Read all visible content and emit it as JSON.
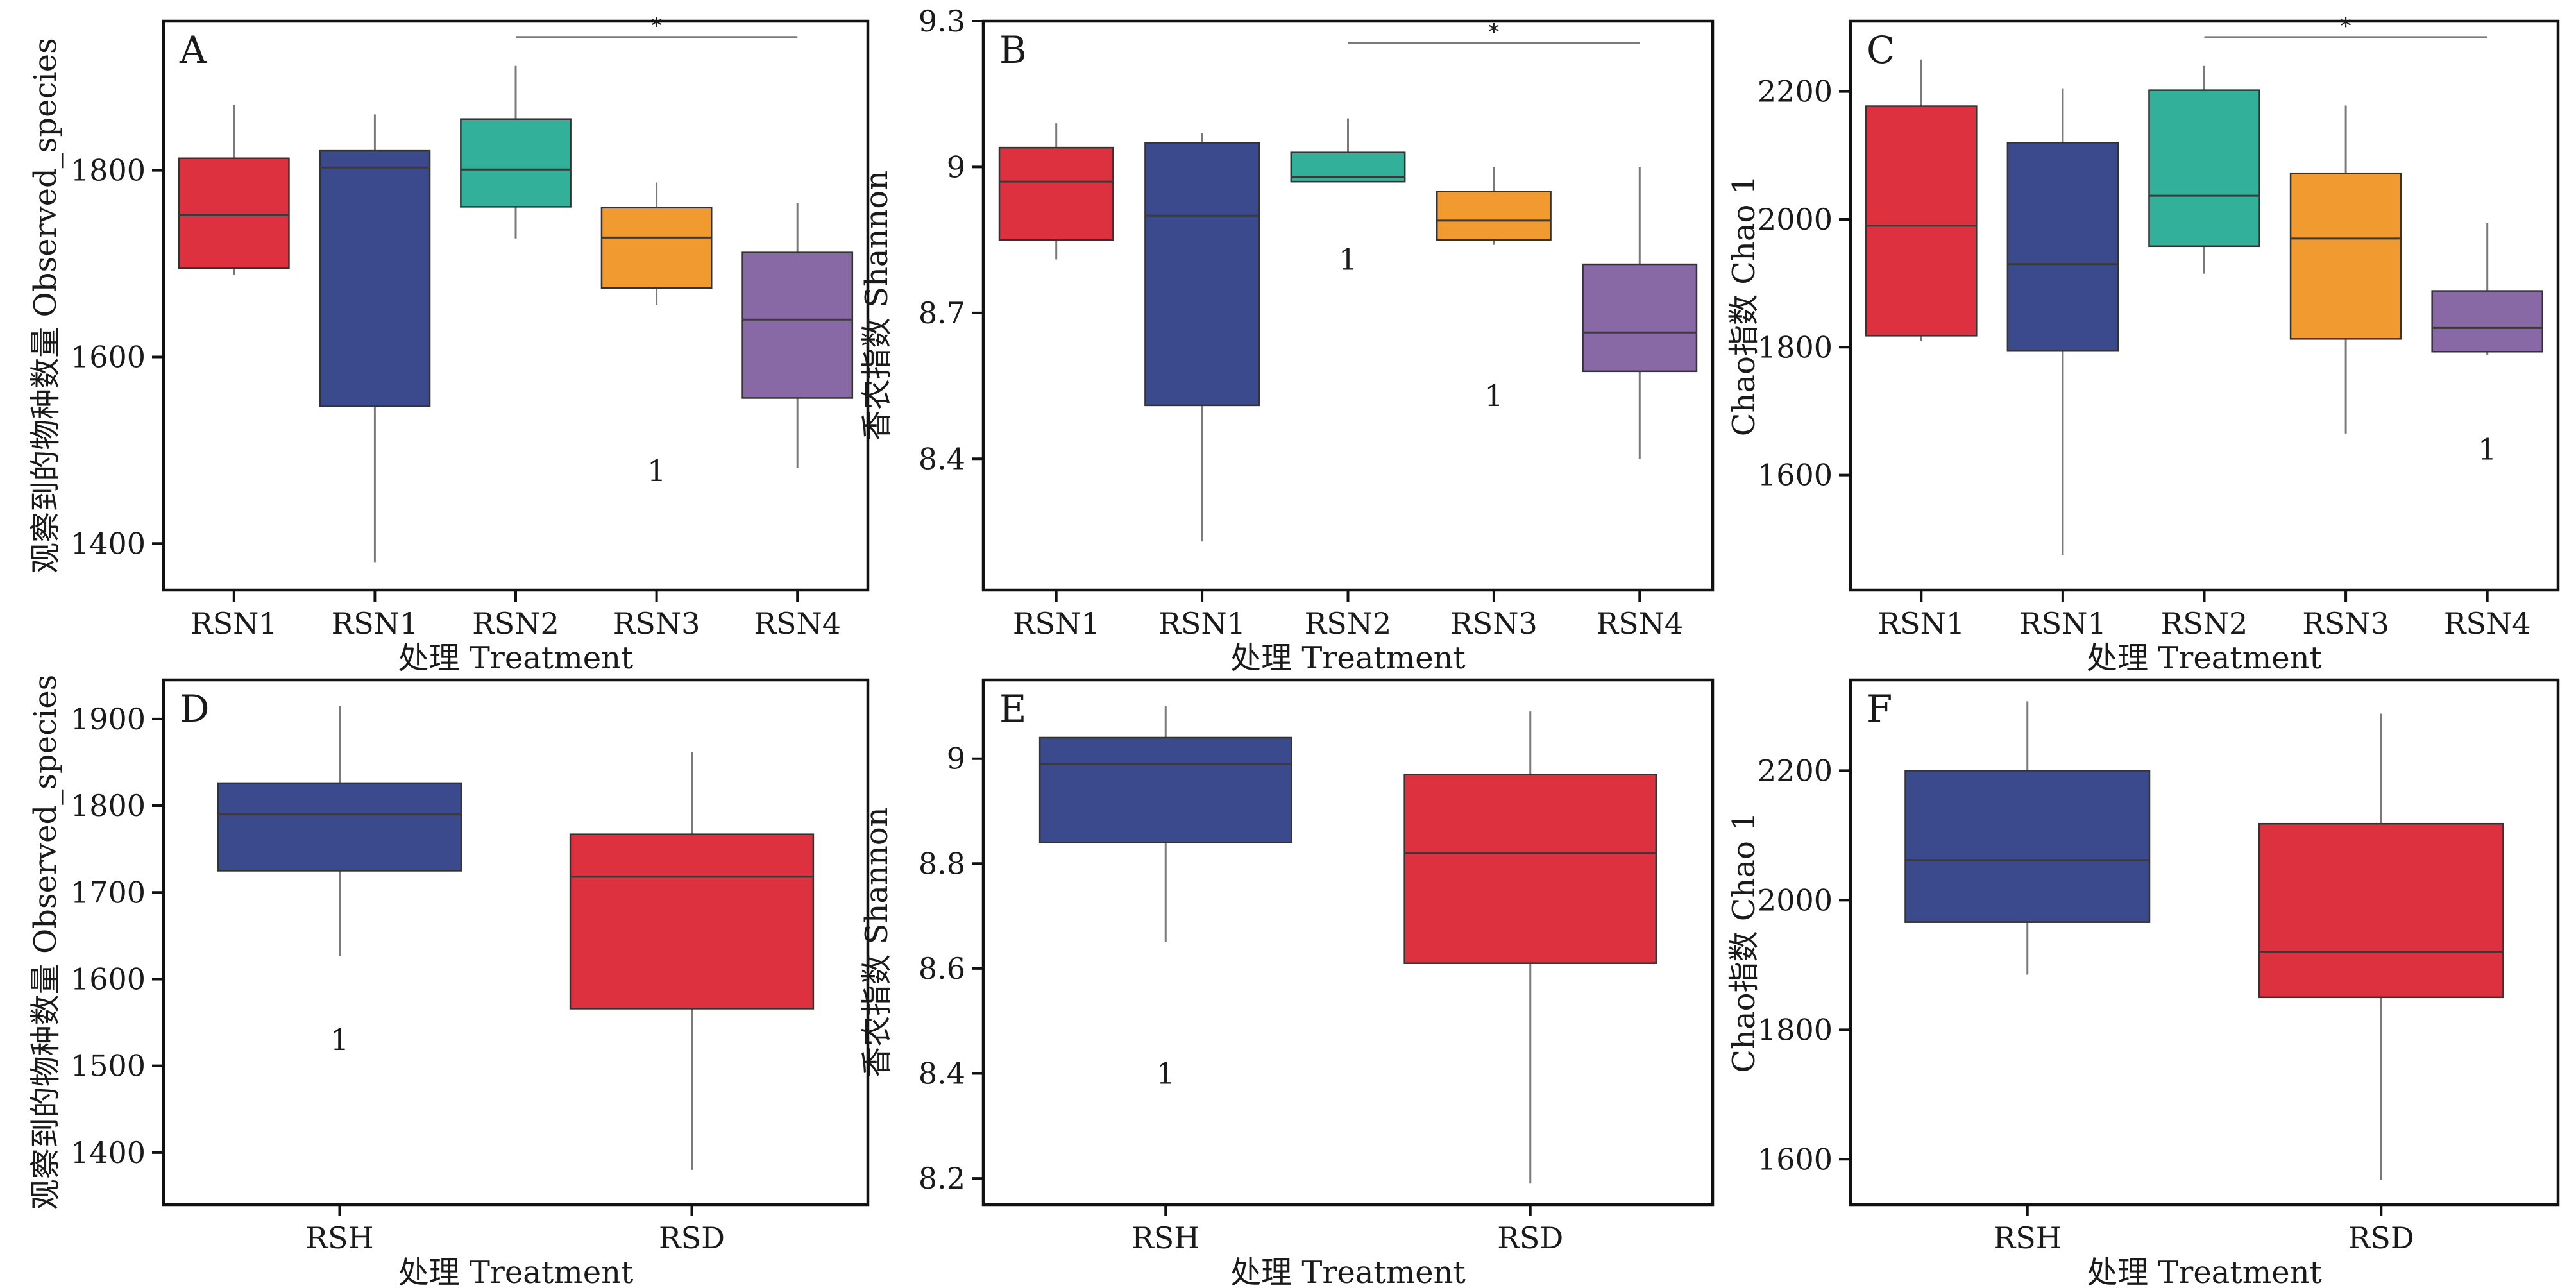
{
  "figure": {
    "panels": [
      {
        "id": "A",
        "letter": "A",
        "xlabel": "处理 Treatment",
        "ylabel": "观察到的物种数量 Observed_species",
        "ylim": [
          1350,
          1960
        ],
        "yticks": [
          1400,
          1600,
          1800
        ],
        "significance": {
          "from": 2,
          "to": 4,
          "label": "*",
          "y": 1943
        },
        "groups": [
          {
            "label": "RSN1",
            "color": "#dd3140",
            "whislo": 1688,
            "q1": 1695,
            "med": 1752,
            "q3": 1813,
            "whishi": 1870
          },
          {
            "label": "RSN1",
            "color": "#3a4a8c",
            "whislo": 1380,
            "q1": 1547,
            "med": 1803,
            "q3": 1821,
            "whishi": 1860
          },
          {
            "label": "RSN2",
            "color": "#33b09a",
            "whislo": 1727,
            "q1": 1761,
            "med": 1801,
            "q3": 1855,
            "whishi": 1912
          },
          {
            "label": "RSN3",
            "color": "#f19a30",
            "whislo": 1656,
            "q1": 1674,
            "med": 1728,
            "q3": 1760,
            "whishi": 1787
          },
          {
            "label": "RSN4",
            "color": "#8869a6",
            "whislo": 1481,
            "q1": 1556,
            "med": 1640,
            "q3": 1712,
            "whishi": 1765
          }
        ],
        "outliers": [
          {
            "group": 3,
            "y": 1478,
            "label": "1"
          }
        ]
      },
      {
        "id": "B",
        "letter": "B",
        "xlabel": "处理 Treatment",
        "ylabel": "香农指数 Shannon",
        "ylim": [
          8.13,
          9.3
        ],
        "yticks": [
          8.4,
          8.7,
          9.0,
          9.3
        ],
        "significance": {
          "from": 2,
          "to": 4,
          "label": "*",
          "y": 9.255
        },
        "groups": [
          {
            "label": "RSN1",
            "color": "#dd3140",
            "whislo": 8.81,
            "q1": 8.85,
            "med": 8.97,
            "q3": 9.04,
            "whishi": 9.09
          },
          {
            "label": "RSN1",
            "color": "#3a4a8c",
            "whislo": 8.23,
            "q1": 8.51,
            "med": 8.9,
            "q3": 9.05,
            "whishi": 9.07
          },
          {
            "label": "RSN2",
            "color": "#33b09a",
            "whislo": 8.97,
            "q1": 8.97,
            "med": 8.98,
            "q3": 9.03,
            "whishi": 9.1
          },
          {
            "label": "RSN3",
            "color": "#f19a30",
            "whislo": 8.84,
            "q1": 8.85,
            "med": 8.89,
            "q3": 8.95,
            "whishi": 9.0
          },
          {
            "label": "RSN4",
            "color": "#8869a6",
            "whislo": 8.4,
            "q1": 8.58,
            "med": 8.66,
            "q3": 8.8,
            "whishi": 9.0
          }
        ],
        "outliers": [
          {
            "group": 2,
            "y": 8.81,
            "label": "1"
          },
          {
            "group": 3,
            "y": 8.53,
            "label": "1"
          }
        ]
      },
      {
        "id": "C",
        "letter": "C",
        "xlabel": "处理 Treatment",
        "ylabel": "Chao指数 Chao 1",
        "ylim": [
          1420,
          2310
        ],
        "yticks": [
          1600,
          1800,
          2000,
          2200
        ],
        "significance": {
          "from": 2,
          "to": 4,
          "label": "*",
          "y": 2285
        },
        "groups": [
          {
            "label": "RSN1",
            "color": "#dd3140",
            "whislo": 1810,
            "q1": 1818,
            "med": 1990,
            "q3": 2177,
            "whishi": 2250
          },
          {
            "label": "RSN1",
            "color": "#3a4a8c",
            "whislo": 1475,
            "q1": 1795,
            "med": 1930,
            "q3": 2120,
            "whishi": 2205
          },
          {
            "label": "RSN2",
            "color": "#33b09a",
            "whislo": 1915,
            "q1": 1958,
            "med": 2037,
            "q3": 2202,
            "whishi": 2240
          },
          {
            "label": "RSN3",
            "color": "#f19a30",
            "whislo": 1665,
            "q1": 1813,
            "med": 1970,
            "q3": 2072,
            "whishi": 2178
          },
          {
            "label": "RSN4",
            "color": "#8869a6",
            "whislo": 1788,
            "q1": 1793,
            "med": 1830,
            "q3": 1888,
            "whishi": 1995
          }
        ],
        "outliers": [
          {
            "group": 4,
            "y": 1640,
            "label": "1"
          }
        ]
      },
      {
        "id": "D",
        "letter": "D",
        "xlabel": "处理 Treatment",
        "ylabel": "观察到的物种数量 Observed_species",
        "ylim": [
          1340,
          1945
        ],
        "yticks": [
          1400,
          1500,
          1600,
          1700,
          1800,
          1900
        ],
        "groups": [
          {
            "label": "RSH",
            "color": "#3a4a8c",
            "whislo": 1627,
            "q1": 1725,
            "med": 1790,
            "q3": 1826,
            "whishi": 1915
          },
          {
            "label": "RSD",
            "color": "#dd3140",
            "whislo": 1380,
            "q1": 1566,
            "med": 1718,
            "q3": 1767,
            "whishi": 1862
          }
        ],
        "outliers": [
          {
            "group": 0,
            "y": 1530,
            "label": "1"
          }
        ]
      },
      {
        "id": "E",
        "letter": "E",
        "xlabel": "处理 Treatment",
        "ylabel": "香农指数 Shannon",
        "ylim": [
          8.15,
          9.15
        ],
        "yticks": [
          8.2,
          8.4,
          8.6,
          8.8,
          9.0
        ],
        "groups": [
          {
            "label": "RSH",
            "color": "#3a4a8c",
            "whislo": 8.65,
            "q1": 8.84,
            "med": 8.99,
            "q3": 9.04,
            "whishi": 9.1
          },
          {
            "label": "RSD",
            "color": "#dd3140",
            "whislo": 8.19,
            "q1": 8.61,
            "med": 8.82,
            "q3": 8.97,
            "whishi": 9.09
          }
        ],
        "outliers": [
          {
            "group": 0,
            "y": 8.4,
            "label": "1"
          }
        ]
      },
      {
        "id": "F",
        "letter": "F",
        "xlabel": "处理 Treatment",
        "ylabel": "Chao指数 Chao 1",
        "ylim": [
          1530,
          2340
        ],
        "yticks": [
          1600,
          1800,
          2000,
          2200
        ],
        "groups": [
          {
            "label": "RSH",
            "color": "#3a4a8c",
            "whislo": 1885,
            "q1": 1966,
            "med": 2062,
            "q3": 2200,
            "whishi": 2307
          },
          {
            "label": "RSD",
            "color": "#dd3140",
            "whislo": 1568,
            "q1": 1850,
            "med": 1920,
            "q3": 2118,
            "whishi": 2288
          }
        ],
        "outliers": []
      }
    ]
  },
  "chart_data": [
    {
      "type": "box",
      "panel": "A",
      "xlabel": "处理 Treatment",
      "ylabel": "观察到的物种数量 Observed_species",
      "categories": [
        "RSN1",
        "RSN1",
        "RSN2",
        "RSN3",
        "RSN4"
      ],
      "boxes": [
        {
          "whislo": 1688,
          "q1": 1695,
          "med": 1752,
          "q3": 1813,
          "whishi": 1870
        },
        {
          "whislo": 1380,
          "q1": 1547,
          "med": 1803,
          "q3": 1821,
          "whishi": 1860
        },
        {
          "whislo": 1727,
          "q1": 1761,
          "med": 1801,
          "q3": 1855,
          "whishi": 1912
        },
        {
          "whislo": 1656,
          "q1": 1674,
          "med": 1728,
          "q3": 1760,
          "whishi": 1787
        },
        {
          "whislo": 1481,
          "q1": 1556,
          "med": 1640,
          "q3": 1712,
          "whishi": 1765
        }
      ],
      "annotations": [
        "*",
        "1"
      ],
      "grid": false
    },
    {
      "type": "box",
      "panel": "B",
      "xlabel": "处理 Treatment",
      "ylabel": "香农指数 Shannon",
      "categories": [
        "RSN1",
        "RSN1",
        "RSN2",
        "RSN3",
        "RSN4"
      ],
      "boxes": [
        {
          "whislo": 8.81,
          "q1": 8.85,
          "med": 8.97,
          "q3": 9.04,
          "whishi": 9.09
        },
        {
          "whislo": 8.23,
          "q1": 8.51,
          "med": 8.9,
          "q3": 9.05,
          "whishi": 9.07
        },
        {
          "whislo": 8.97,
          "q1": 8.97,
          "med": 8.98,
          "q3": 9.03,
          "whishi": 9.1
        },
        {
          "whislo": 8.84,
          "q1": 8.85,
          "med": 8.89,
          "q3": 8.95,
          "whishi": 9.0
        },
        {
          "whislo": 8.4,
          "q1": 8.58,
          "med": 8.66,
          "q3": 8.8,
          "whishi": 9.0
        }
      ],
      "annotations": [
        "*",
        "1",
        "1"
      ],
      "grid": false
    },
    {
      "type": "box",
      "panel": "C",
      "xlabel": "处理 Treatment",
      "ylabel": "Chao指数 Chao 1",
      "categories": [
        "RSN1",
        "RSN1",
        "RSN2",
        "RSN3",
        "RSN4"
      ],
      "boxes": [
        {
          "whislo": 1810,
          "q1": 1818,
          "med": 1990,
          "q3": 2177,
          "whishi": 2250
        },
        {
          "whislo": 1475,
          "q1": 1795,
          "med": 1930,
          "q3": 2120,
          "whishi": 2205
        },
        {
          "whislo": 1915,
          "q1": 1958,
          "med": 2037,
          "q3": 2202,
          "whishi": 2240
        },
        {
          "whislo": 1665,
          "q1": 1813,
          "med": 1970,
          "q3": 2072,
          "whishi": 2178
        },
        {
          "whislo": 1788,
          "q1": 1793,
          "med": 1830,
          "q3": 1888,
          "whishi": 1995
        }
      ],
      "annotations": [
        "*",
        "1"
      ],
      "grid": false
    },
    {
      "type": "box",
      "panel": "D",
      "xlabel": "处理 Treatment",
      "ylabel": "观察到的物种数量 Observed_species",
      "categories": [
        "RSH",
        "RSD"
      ],
      "boxes": [
        {
          "whislo": 1627,
          "q1": 1725,
          "med": 1790,
          "q3": 1826,
          "whishi": 1915
        },
        {
          "whislo": 1380,
          "q1": 1566,
          "med": 1718,
          "q3": 1767,
          "whishi": 1862
        }
      ],
      "annotations": [
        "1"
      ],
      "grid": false
    },
    {
      "type": "box",
      "panel": "E",
      "xlabel": "处理 Treatment",
      "ylabel": "香农指数 Shannon",
      "categories": [
        "RSH",
        "RSD"
      ],
      "boxes": [
        {
          "whislo": 8.65,
          "q1": 8.84,
          "med": 8.99,
          "q3": 9.04,
          "whishi": 9.1
        },
        {
          "whislo": 8.19,
          "q1": 8.61,
          "med": 8.82,
          "q3": 8.97,
          "whishi": 9.09
        }
      ],
      "annotations": [
        "1"
      ],
      "grid": false
    },
    {
      "type": "box",
      "panel": "F",
      "xlabel": "处理 Treatment",
      "ylabel": "Chao指数 Chao 1",
      "categories": [
        "RSH",
        "RSD"
      ],
      "boxes": [
        {
          "whislo": 1885,
          "q1": 1966,
          "med": 2062,
          "q3": 2200,
          "whishi": 2307
        },
        {
          "whislo": 1568,
          "q1": 1850,
          "med": 1920,
          "q3": 2118,
          "whishi": 2288
        }
      ],
      "annotations": [],
      "grid": false
    }
  ]
}
